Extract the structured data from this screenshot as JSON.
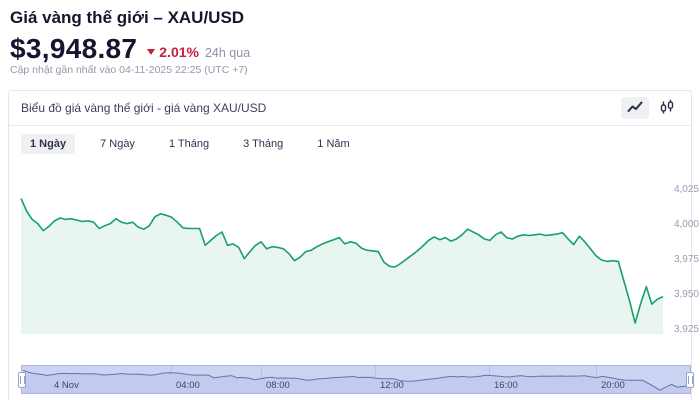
{
  "header": {
    "title": "Giá vàng thế giới – XAU/USD",
    "price": "$3,948.87",
    "change_pct": "2.01%",
    "change_direction": "down",
    "change_period": "24h qua",
    "updated": "Cập nhật gần nhất vào 04-11-2025 22:25 (UTC +7)"
  },
  "chart_card": {
    "title": "Biểu đồ giá vàng thế giới - giá vàng XAU/USD",
    "chart_type_buttons": [
      {
        "icon": "line-chart-icon",
        "active": true
      },
      {
        "icon": "candlestick-icon",
        "active": false
      }
    ],
    "tabs": [
      {
        "label": "1 Ngày",
        "active": true
      },
      {
        "label": "7 Ngày",
        "active": false
      },
      {
        "label": "1 Tháng",
        "active": false
      },
      {
        "label": "3 Tháng",
        "active": false
      },
      {
        "label": "1 Năm",
        "active": false
      }
    ]
  },
  "chart_data": {
    "type": "area",
    "title": "Giá vàng XAU/USD - 1 Ngày",
    "y_ticks": [
      "4,025",
      "4,000",
      "3,975",
      "3,950",
      "3,925"
    ],
    "y_tick_values": [
      4025,
      4000,
      3975,
      3950,
      3925
    ],
    "ylim": [
      3922,
      4038
    ],
    "x_ticks": [
      "4 Nov",
      "04:00",
      "08:00",
      "12:00",
      "16:00",
      "20:00"
    ],
    "grid": false,
    "legend": false,
    "line_color": "#18a06c",
    "fill_color": "#e9f5ef",
    "values": [
      4019,
      4010,
      4004,
      4001,
      3996,
      3999,
      4003,
      4005,
      4004,
      4004.5,
      4003.5,
      4002.5,
      4003,
      4002,
      3997.5,
      3999.5,
      4001,
      4004.5,
      4002,
      4001,
      4002,
      3998.5,
      3997,
      3999.5,
      4006,
      4008,
      4007,
      4005.5,
      4002,
      3998,
      3997.5,
      3997.5,
      3997.5,
      3985.5,
      3989,
      3992.5,
      3995,
      3985.5,
      3986.5,
      3984,
      3976,
      3981,
      3985.5,
      3988,
      3983,
      3984.5,
      3984,
      3983,
      3979.5,
      3974.5,
      3977,
      3981,
      3982,
      3984.5,
      3986.5,
      3988,
      3989.5,
      3991,
      3986.5,
      3988,
      3987,
      3983.5,
      3982,
      3981.5,
      3981,
      3973.5,
      3970.5,
      3970,
      3972.5,
      3975.5,
      3978.5,
      3981.5,
      3985,
      3989,
      3991.5,
      3989.5,
      3991,
      3988.5,
      3990,
      3993,
      3997,
      3995,
      3993,
      3990,
      3989,
      3993,
      3995,
      3991,
      3990,
      3992,
      3993,
      3992.5,
      3993,
      3993.5,
      3992.5,
      3993,
      3993.5,
      3994.5,
      3990,
      3986,
      3992,
      3988,
      3983,
      3978,
      3975,
      3974,
      3974.5,
      3974,
      3960,
      3946,
      3930,
      3944,
      3956,
      3943.5,
      3947,
      3948.87
    ]
  },
  "navigator": {
    "labels": [
      "4 Nov",
      "04:00",
      "08:00",
      "12:00",
      "16:00",
      "20:00"
    ],
    "band_color": "#ccd3f3",
    "line_color": "#5a7aa4",
    "fill_color": "#c2caf0"
  }
}
